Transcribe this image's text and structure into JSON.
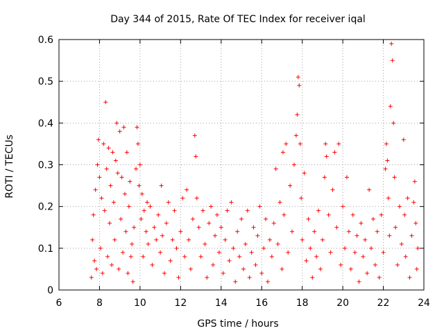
{
  "chart_data": {
    "type": "scatter",
    "title": "Day 344 of 2015, Rate Of TEC Index for receiver iqal",
    "xlabel": "GPS time / hours",
    "ylabel": "ROTI / TECUs",
    "xlim": [
      6,
      24
    ],
    "ylim": [
      0,
      0.6
    ],
    "xticks": [
      6,
      8,
      10,
      12,
      14,
      16,
      18,
      20,
      22,
      24
    ],
    "xtick_labels": [
      "6",
      "8",
      "10",
      "12",
      "14",
      "16",
      "18",
      "20",
      "22",
      "24"
    ],
    "yticks": [
      0,
      0.1,
      0.2,
      0.3,
      0.4,
      0.5,
      0.6
    ],
    "ytick_labels": [
      "0",
      "0.1",
      "0.2",
      "0.3",
      "0.4",
      "0.5",
      "0.6"
    ],
    "grid": true,
    "marker": "+",
    "color": "#ff0000",
    "series": [
      {
        "name": "ROTI",
        "points": [
          [
            7.6,
            0.03
          ],
          [
            7.65,
            0.12
          ],
          [
            7.7,
            0.18
          ],
          [
            7.75,
            0.07
          ],
          [
            7.8,
            0.24
          ],
          [
            7.85,
            0.05
          ],
          [
            7.9,
            0.3
          ],
          [
            7.95,
            0.36
          ],
          [
            8.0,
            0.27
          ],
          [
            8.05,
            0.1
          ],
          [
            8.1,
            0.22
          ],
          [
            8.15,
            0.04
          ],
          [
            8.2,
            0.35
          ],
          [
            8.25,
            0.19
          ],
          [
            8.3,
            0.45
          ],
          [
            8.35,
            0.29
          ],
          [
            8.4,
            0.08
          ],
          [
            8.45,
            0.34
          ],
          [
            8.5,
            0.16
          ],
          [
            8.55,
            0.25
          ],
          [
            8.6,
            0.06
          ],
          [
            8.65,
            0.33
          ],
          [
            8.7,
            0.21
          ],
          [
            8.75,
            0.12
          ],
          [
            8.8,
            0.31
          ],
          [
            8.85,
            0.4
          ],
          [
            8.9,
            0.28
          ],
          [
            8.95,
            0.05
          ],
          [
            9.0,
            0.38
          ],
          [
            9.05,
            0.17
          ],
          [
            9.1,
            0.27
          ],
          [
            9.15,
            0.09
          ],
          [
            9.2,
            0.39
          ],
          [
            9.25,
            0.23
          ],
          [
            9.3,
            0.14
          ],
          [
            9.35,
            0.33
          ],
          [
            9.4,
            0.04
          ],
          [
            9.45,
            0.2
          ],
          [
            9.5,
            0.26
          ],
          [
            9.55,
            0.08
          ],
          [
            9.6,
            0.11
          ],
          [
            9.65,
            0.02
          ],
          [
            9.7,
            0.15
          ],
          [
            9.8,
            0.29
          ],
          [
            9.85,
            0.39
          ],
          [
            9.9,
            0.35
          ],
          [
            9.95,
            0.25
          ],
          [
            10.0,
            0.3
          ],
          [
            10.05,
            0.17
          ],
          [
            10.1,
            0.23
          ],
          [
            10.15,
            0.08
          ],
          [
            10.2,
            0.19
          ],
          [
            10.3,
            0.14
          ],
          [
            10.35,
            0.21
          ],
          [
            10.4,
            0.11
          ],
          [
            10.5,
            0.2
          ],
          [
            10.6,
            0.06
          ],
          [
            10.7,
            0.15
          ],
          [
            10.8,
            0.12
          ],
          [
            10.9,
            0.18
          ],
          [
            11.0,
            0.09
          ],
          [
            11.05,
            0.25
          ],
          [
            11.1,
            0.13
          ],
          [
            11.2,
            0.04
          ],
          [
            11.3,
            0.16
          ],
          [
            11.4,
            0.21
          ],
          [
            11.5,
            0.07
          ],
          [
            11.6,
            0.12
          ],
          [
            11.7,
            0.19
          ],
          [
            11.8,
            0.1
          ],
          [
            11.9,
            0.03
          ],
          [
            12.0,
            0.14
          ],
          [
            12.1,
            0.22
          ],
          [
            12.2,
            0.08
          ],
          [
            12.3,
            0.24
          ],
          [
            12.4,
            0.12
          ],
          [
            12.5,
            0.05
          ],
          [
            12.6,
            0.17
          ],
          [
            12.7,
            0.37
          ],
          [
            12.75,
            0.32
          ],
          [
            12.8,
            0.22
          ],
          [
            12.9,
            0.15
          ],
          [
            13.0,
            0.08
          ],
          [
            13.1,
            0.19
          ],
          [
            13.2,
            0.11
          ],
          [
            13.3,
            0.03
          ],
          [
            13.4,
            0.16
          ],
          [
            13.5,
            0.2
          ],
          [
            13.6,
            0.06
          ],
          [
            13.7,
            0.13
          ],
          [
            13.8,
            0.18
          ],
          [
            13.9,
            0.09
          ],
          [
            14.0,
            0.15
          ],
          [
            14.1,
            0.04
          ],
          [
            14.2,
            0.12
          ],
          [
            14.3,
            0.19
          ],
          [
            14.4,
            0.07
          ],
          [
            14.5,
            0.21
          ],
          [
            14.6,
            0.1
          ],
          [
            14.7,
            0.02
          ],
          [
            14.8,
            0.14
          ],
          [
            14.9,
            0.08
          ],
          [
            15.0,
            0.17
          ],
          [
            15.1,
            0.05
          ],
          [
            15.2,
            0.11
          ],
          [
            15.3,
            0.19
          ],
          [
            15.4,
            0.03
          ],
          [
            15.5,
            0.09
          ],
          [
            15.6,
            0.15
          ],
          [
            15.7,
            0.06
          ],
          [
            15.8,
            0.13
          ],
          [
            15.9,
            0.2
          ],
          [
            16.0,
            0.04
          ],
          [
            16.1,
            0.1
          ],
          [
            16.2,
            0.17
          ],
          [
            16.3,
            0.02
          ],
          [
            16.4,
            0.12
          ],
          [
            16.5,
            0.08
          ],
          [
            16.6,
            0.16
          ],
          [
            16.7,
            0.29
          ],
          [
            16.8,
            0.11
          ],
          [
            16.9,
            0.21
          ],
          [
            17.0,
            0.05
          ],
          [
            17.05,
            0.33
          ],
          [
            17.1,
            0.18
          ],
          [
            17.2,
            0.35
          ],
          [
            17.3,
            0.09
          ],
          [
            17.4,
            0.25
          ],
          [
            17.5,
            0.14
          ],
          [
            17.6,
            0.3
          ],
          [
            17.7,
            0.37
          ],
          [
            17.75,
            0.42
          ],
          [
            17.8,
            0.51
          ],
          [
            17.85,
            0.49
          ],
          [
            17.9,
            0.35
          ],
          [
            17.95,
            0.22
          ],
          [
            18.0,
            0.12
          ],
          [
            18.1,
            0.28
          ],
          [
            18.2,
            0.07
          ],
          [
            18.3,
            0.17
          ],
          [
            18.4,
            0.1
          ],
          [
            18.5,
            0.03
          ],
          [
            18.6,
            0.14
          ],
          [
            18.7,
            0.08
          ],
          [
            18.8,
            0.19
          ],
          [
            18.9,
            0.05
          ],
          [
            19.0,
            0.12
          ],
          [
            19.1,
            0.27
          ],
          [
            19.15,
            0.35
          ],
          [
            19.2,
            0.32
          ],
          [
            19.3,
            0.18
          ],
          [
            19.4,
            0.09
          ],
          [
            19.5,
            0.24
          ],
          [
            19.6,
            0.33
          ],
          [
            19.7,
            0.15
          ],
          [
            19.8,
            0.35
          ],
          [
            19.9,
            0.06
          ],
          [
            20.0,
            0.2
          ],
          [
            20.1,
            0.1
          ],
          [
            20.2,
            0.27
          ],
          [
            20.3,
            0.14
          ],
          [
            20.4,
            0.05
          ],
          [
            20.5,
            0.18
          ],
          [
            20.6,
            0.09
          ],
          [
            20.7,
            0.13
          ],
          [
            20.8,
            0.02
          ],
          [
            20.9,
            0.16
          ],
          [
            21.0,
            0.08
          ],
          [
            21.1,
            0.12
          ],
          [
            21.2,
            0.04
          ],
          [
            21.3,
            0.24
          ],
          [
            21.4,
            0.1
          ],
          [
            21.5,
            0.17
          ],
          [
            21.6,
            0.06
          ],
          [
            21.7,
            0.14
          ],
          [
            21.8,
            0.03
          ],
          [
            21.9,
            0.18
          ],
          [
            22.0,
            0.09
          ],
          [
            22.1,
            0.29
          ],
          [
            22.15,
            0.35
          ],
          [
            22.2,
            0.31
          ],
          [
            22.25,
            0.22
          ],
          [
            22.3,
            0.13
          ],
          [
            22.35,
            0.44
          ],
          [
            22.4,
            0.59
          ],
          [
            22.45,
            0.55
          ],
          [
            22.5,
            0.4
          ],
          [
            22.55,
            0.27
          ],
          [
            22.6,
            0.15
          ],
          [
            22.7,
            0.06
          ],
          [
            22.8,
            0.2
          ],
          [
            22.9,
            0.11
          ],
          [
            23.0,
            0.36
          ],
          [
            23.05,
            0.18
          ],
          [
            23.1,
            0.08
          ],
          [
            23.2,
            0.22
          ],
          [
            23.3,
            0.03
          ],
          [
            23.4,
            0.13
          ],
          [
            23.5,
            0.21
          ],
          [
            23.55,
            0.26
          ],
          [
            23.6,
            0.16
          ],
          [
            23.65,
            0.05
          ],
          [
            23.7,
            0.1
          ]
        ]
      }
    ]
  }
}
